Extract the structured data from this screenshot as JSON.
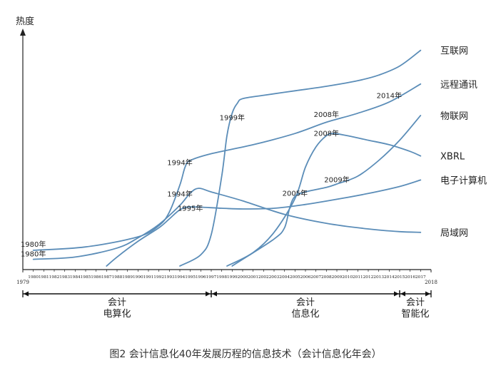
{
  "chart_data": {
    "type": "line",
    "ylabel": "热度",
    "caption": "图2 会计信息化40年发展历程的信息技术（会计信息化年会）",
    "x_start_label": "1979",
    "x_end_label": "2018",
    "xlim": [
      1979,
      2018
    ],
    "ylim": [
      0,
      100
    ],
    "grid": false,
    "tick_years": [
      "1980",
      "1981",
      "1982",
      "1983",
      "1984",
      "1985",
      "1986",
      "1987",
      "1988",
      "1989",
      "1990",
      "1991",
      "1992",
      "1993",
      "1994",
      "1995",
      "1996",
      "1997",
      "1998",
      "1999",
      "2000",
      "2001",
      "2002",
      "2003",
      "2004",
      "2005",
      "2006",
      "2007",
      "2008",
      "2009",
      "2010",
      "2011",
      "2012",
      "2013",
      "2014",
      "2015",
      "2016",
      "2017"
    ],
    "line_color": "#5b8db8",
    "series": [
      {
        "name": "互联网",
        "points": [
          [
            1994,
            0
          ],
          [
            1996,
            5
          ],
          [
            1997,
            14
          ],
          [
            1998,
            40
          ],
          [
            1998.5,
            58
          ],
          [
            1999,
            68
          ],
          [
            1999.5,
            72.5
          ],
          [
            2000,
            74.5
          ],
          [
            2002,
            76
          ],
          [
            2005,
            78
          ],
          [
            2008,
            80
          ],
          [
            2011,
            82.5
          ],
          [
            2013,
            85
          ],
          [
            2015,
            89
          ],
          [
            2017,
            96
          ]
        ]
      },
      {
        "name": "远程通讯",
        "points": [
          [
            1980,
            7
          ],
          [
            1985,
            8.5
          ],
          [
            1990,
            13
          ],
          [
            1992,
            18
          ],
          [
            1993,
            24
          ],
          [
            1994,
            36
          ],
          [
            1994.5,
            44
          ],
          [
            1995,
            47
          ],
          [
            1997,
            50
          ],
          [
            2001,
            54
          ],
          [
            2005,
            59
          ],
          [
            2008,
            64
          ],
          [
            2011,
            68
          ],
          [
            2014,
            73
          ],
          [
            2017,
            81
          ]
        ]
      },
      {
        "name": "物联网",
        "points": [
          [
            1999,
            0
          ],
          [
            2000,
            3
          ],
          [
            2003,
            12
          ],
          [
            2004,
            17
          ],
          [
            2004.5,
            26
          ],
          [
            2005,
            31
          ],
          [
            2006,
            33
          ],
          [
            2008,
            35
          ],
          [
            2009,
            36.5
          ],
          [
            2011,
            40
          ],
          [
            2013,
            47
          ],
          [
            2015,
            56
          ],
          [
            2017,
            67
          ]
        ]
      },
      {
        "name": "XBRL",
        "points": [
          [
            1998.5,
            0
          ],
          [
            2001,
            6
          ],
          [
            2003,
            15
          ],
          [
            2005,
            30
          ],
          [
            2006,
            44
          ],
          [
            2007,
            53
          ],
          [
            2008,
            58
          ],
          [
            2008.7,
            59
          ],
          [
            2010,
            58
          ],
          [
            2012,
            56
          ],
          [
            2014,
            54
          ],
          [
            2016,
            51
          ],
          [
            2017,
            49
          ]
        ]
      },
      {
        "name": "电子计算机",
        "points": [
          [
            1987,
            0
          ],
          [
            1988,
            4
          ],
          [
            1990,
            11
          ],
          [
            1992,
            17
          ],
          [
            1993,
            21
          ],
          [
            1994,
            25
          ],
          [
            1995,
            26.3
          ],
          [
            1998,
            25.7
          ],
          [
            2000,
            25.4
          ],
          [
            2003,
            25.7
          ],
          [
            2006,
            27.4
          ],
          [
            2009,
            29.7
          ],
          [
            2012,
            32.3
          ],
          [
            2015,
            35.4
          ],
          [
            2017,
            38.3
          ]
        ]
      },
      {
        "name": "局域网",
        "points": [
          [
            1980,
            3
          ],
          [
            1984,
            4
          ],
          [
            1988,
            8
          ],
          [
            1990,
            12.5
          ],
          [
            1992,
            18.5
          ],
          [
            1994,
            27
          ],
          [
            1995,
            32.5
          ],
          [
            1995.8,
            34.6
          ],
          [
            1997,
            33
          ],
          [
            2000,
            29
          ],
          [
            2004,
            23
          ],
          [
            2008,
            19
          ],
          [
            2012,
            16.5
          ],
          [
            2015,
            15.3
          ],
          [
            2017,
            15
          ]
        ]
      }
    ],
    "point_labels": [
      {
        "text": "1980年",
        "x": 1980,
        "y": 8.5
      },
      {
        "text": "1980年",
        "x": 1980,
        "y": 4.3
      },
      {
        "text": "1994年",
        "x": 1994,
        "y": 45
      },
      {
        "text": "1994年",
        "x": 1994,
        "y": 31
      },
      {
        "text": "1995年",
        "x": 1995,
        "y": 24.6
      },
      {
        "text": "1999年",
        "x": 1999,
        "y": 65
      },
      {
        "text": "2008年",
        "x": 2008,
        "y": 66.3
      },
      {
        "text": "2014年",
        "x": 2014,
        "y": 74.7
      },
      {
        "text": "2008年",
        "x": 2008,
        "y": 58
      },
      {
        "text": "2009年",
        "x": 2009,
        "y": 37.3
      },
      {
        "text": "2005年",
        "x": 2005,
        "y": 31.3
      }
    ],
    "periods": [
      {
        "label_lines": [
          "会计",
          "电算化"
        ],
        "start": 1979,
        "end": 1997
      },
      {
        "label_lines": [
          "会计",
          "信息化"
        ],
        "start": 1997,
        "end": 2015
      },
      {
        "label_lines": [
          "会计",
          "智能化"
        ],
        "start": 2015,
        "end": 2018
      }
    ]
  }
}
